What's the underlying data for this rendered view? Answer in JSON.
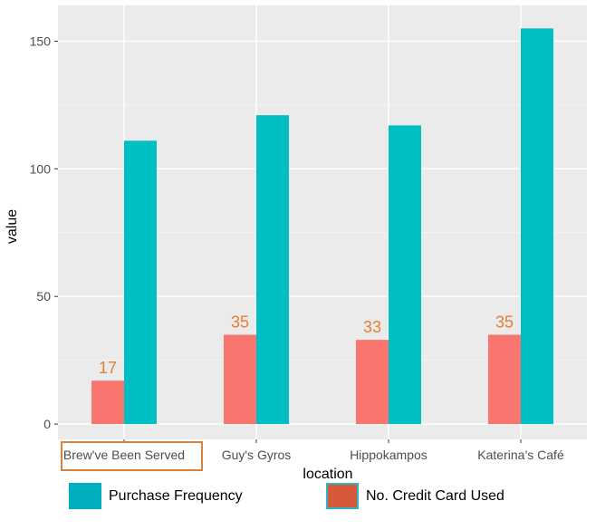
{
  "chart_data": {
    "type": "bar",
    "xlabel": "location",
    "ylabel": "value",
    "categories": [
      "Brew've Been Served",
      "Guy's Gyros",
      "Hippokampos",
      "Katerina’s Café"
    ],
    "series": [
      {
        "name": "No. Credit Card Used",
        "values": [
          17,
          35,
          33,
          35
        ],
        "color": "#f8766d"
      },
      {
        "name": "Purchase Frequency",
        "values": [
          111,
          121,
          117,
          155
        ],
        "color": "#00bfc4"
      }
    ],
    "data_labels": [
      "17",
      "35",
      "33",
      "35"
    ],
    "data_label_color": "#e87d2f",
    "yticks": [
      0,
      50,
      100,
      150
    ],
    "ylim": [
      -6,
      164
    ],
    "grid": true,
    "panel_background": "#ebebeb",
    "legend_placement": "bottom",
    "highlighted_category": "Brew've Been Served",
    "highlight_color": "#d9823b"
  },
  "legend": [
    {
      "label": "Purchase Frequency",
      "color": "#00b0c0",
      "border": "#00b0c0"
    },
    {
      "label": "No. Credit Card Used",
      "color": "#d65a3a",
      "border": "#2fb3c8"
    }
  ]
}
